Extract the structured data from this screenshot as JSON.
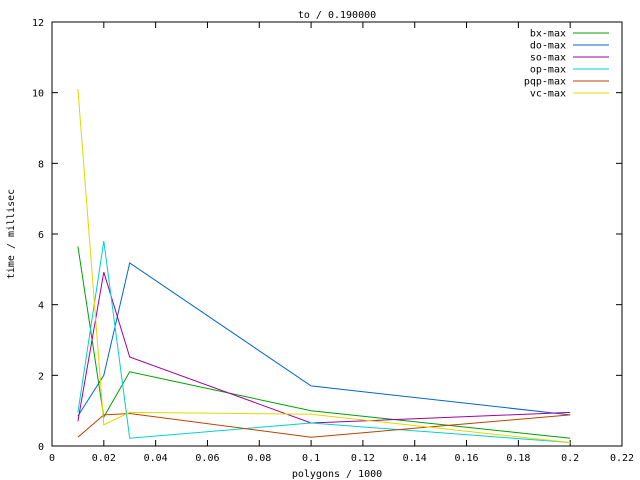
{
  "chart_data": {
    "type": "line",
    "title": "to / 0.190000",
    "xlabel": "polygons / 1000",
    "ylabel": "time / millisec",
    "xlim": [
      0,
      0.22
    ],
    "ylim": [
      0,
      12
    ],
    "xticks": [
      "0",
      "0.02",
      "0.04",
      "0.06",
      "0.08",
      "0.1",
      "0.12",
      "0.14",
      "0.16",
      "0.18",
      "0.2",
      "0.22"
    ],
    "yticks": [
      "0",
      "2",
      "4",
      "6",
      "8",
      "10",
      "12"
    ],
    "grid": false,
    "legend_position": "top-right",
    "x": [
      0.01,
      0.02,
      0.03,
      0.1,
      0.2
    ],
    "series": [
      {
        "name": "bx-max",
        "color": "#00a000",
        "values": [
          5.65,
          0.82,
          2.1,
          1.0,
          0.22
        ]
      },
      {
        "name": "do-max",
        "color": "#0066cc",
        "values": [
          0.85,
          2.0,
          5.18,
          1.7,
          0.88
        ]
      },
      {
        "name": "so-max",
        "color": "#a000a0",
        "values": [
          0.7,
          4.92,
          2.52,
          0.65,
          0.95
        ]
      },
      {
        "name": "op-max",
        "color": "#00d0d0",
        "values": [
          0.95,
          5.8,
          0.22,
          0.65,
          0.1
        ]
      },
      {
        "name": "pqp-max",
        "color": "#c04000",
        "values": [
          0.25,
          0.88,
          0.92,
          0.25,
          0.88
        ]
      },
      {
        "name": "vc-max",
        "color": "#e0d800",
        "values": [
          10.1,
          0.6,
          0.95,
          0.9,
          0.1
        ]
      }
    ]
  }
}
